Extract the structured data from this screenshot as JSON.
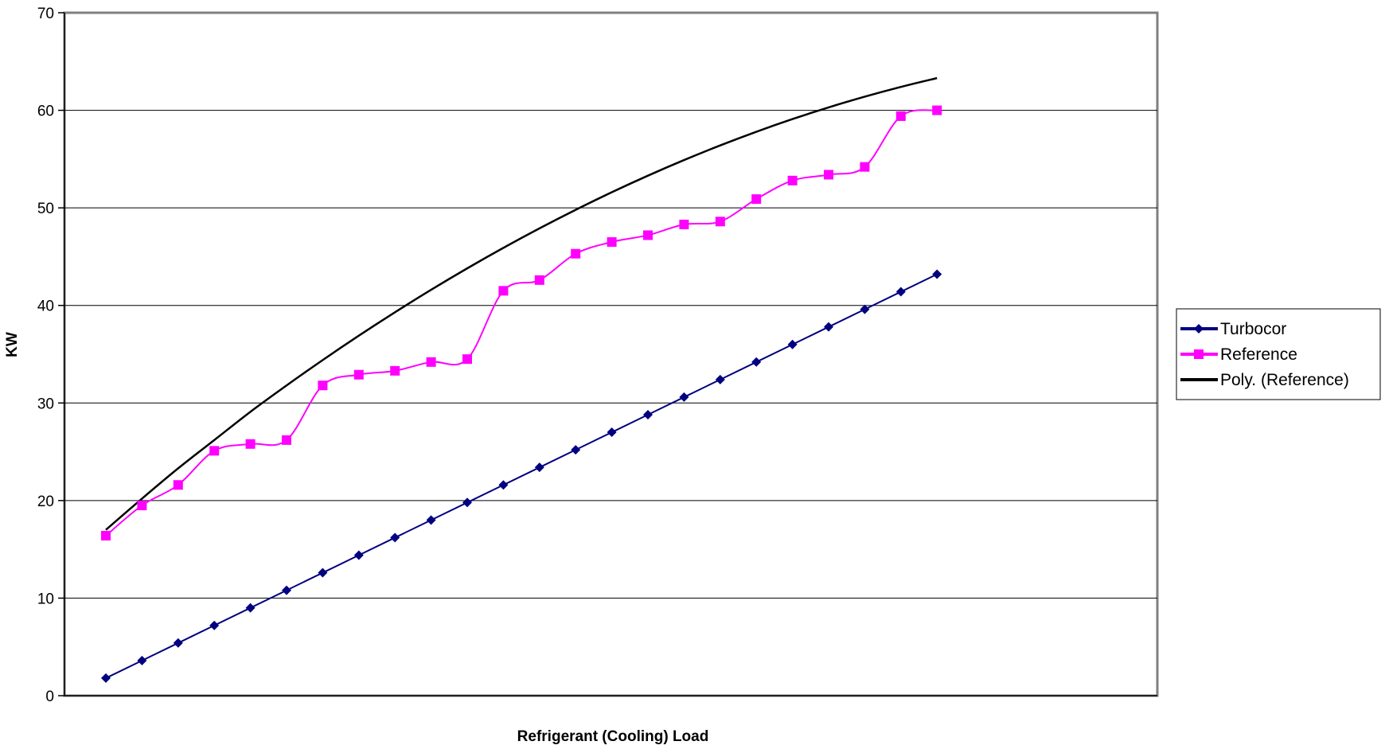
{
  "chart_data": {
    "type": "line",
    "title": "",
    "xlabel": "Refrigerant (Cooling) Load",
    "ylabel": "KW",
    "ylim": [
      0,
      70
    ],
    "yticks": [
      "0",
      "10",
      "20",
      "30",
      "40",
      "50",
      "60",
      "70"
    ],
    "grid": "horizontal major gridlines",
    "legend_position": "right",
    "x": [
      1,
      2,
      3,
      4,
      5,
      6,
      7,
      8,
      9,
      10,
      11,
      12,
      13,
      14,
      15,
      16,
      17,
      18,
      19,
      20,
      21,
      22,
      23,
      24
    ],
    "series": [
      {
        "name": "Turbocor",
        "color": "#000080",
        "marker": "diamond",
        "line_style": "solid",
        "values": [
          1.8,
          3.6,
          5.4,
          7.2,
          9.0,
          10.8,
          12.6,
          14.4,
          16.2,
          18.0,
          19.8,
          21.6,
          23.4,
          25.2,
          27.0,
          28.8,
          30.6,
          32.4,
          34.2,
          36.0,
          37.8,
          39.6,
          41.4,
          43.2
        ]
      },
      {
        "name": "Reference",
        "color": "#FF00FF",
        "marker": "square",
        "line_style": "smoothed",
        "values": [
          16.4,
          19.5,
          21.6,
          25.1,
          25.8,
          26.2,
          31.8,
          32.9,
          33.3,
          34.2,
          34.5,
          41.5,
          42.6,
          45.3,
          46.5,
          47.2,
          48.3,
          48.6,
          50.9,
          52.8,
          53.4,
          54.2,
          59.4,
          60.0
        ]
      },
      {
        "name": "Poly. (Reference)",
        "color": "#000000",
        "marker": "none",
        "line_style": "trendline",
        "values": [
          17.0,
          20.2,
          23.3,
          26.2,
          29.1,
          31.8,
          34.4,
          36.9,
          39.3,
          41.6,
          43.8,
          45.9,
          47.9,
          49.8,
          51.6,
          53.3,
          54.9,
          56.4,
          57.8,
          59.1,
          60.3,
          61.4,
          62.4,
          63.3
        ]
      }
    ]
  }
}
